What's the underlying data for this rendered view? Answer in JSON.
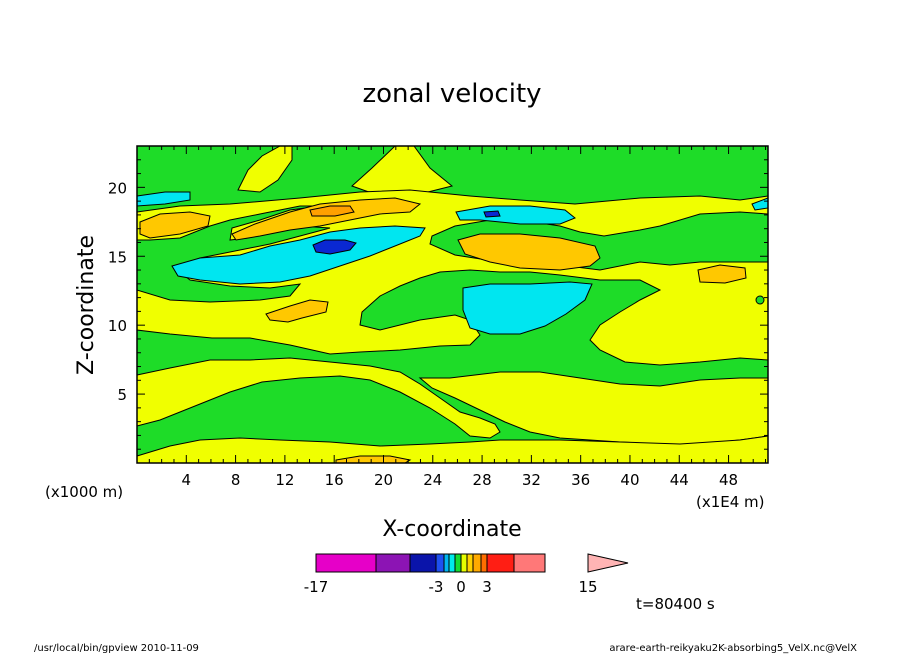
{
  "chart_data": {
    "type": "heatmap",
    "title": "zonal velocity",
    "xlabel": "X-coordinate",
    "ylabel": "Z-coordinate",
    "x_unit": "(x1E4 m)",
    "y_unit": "(x1000 m)",
    "xlim": [
      0,
      51.2
    ],
    "ylim": [
      0,
      23
    ],
    "x_ticks": [
      "4",
      "8",
      "12",
      "16",
      "20",
      "24",
      "28",
      "32",
      "36",
      "40",
      "44",
      "48"
    ],
    "y_ticks": [
      "5",
      "10",
      "15",
      "20"
    ],
    "time_label": "t=80400 s",
    "colorbar": {
      "tick_labels": [
        "-17",
        "-3",
        "0",
        "3",
        "15"
      ],
      "colors": [
        "#e600c8",
        "#8c14b4",
        "#0a14aa",
        "#1e50f0",
        "#00b4f0",
        "#00ebeb",
        "#14dc32",
        "#e6ff00",
        "#ffd200",
        "#ffaa00",
        "#ff6e00",
        "#ff1e14",
        "#ff7878",
        "#ffb4b4"
      ]
    },
    "regions": [
      {
        "level": "green",
        "color": "#1edc28",
        "desc": "background"
      },
      {
        "level": "yellow",
        "color": "#f0ff00"
      },
      {
        "level": "orange",
        "color": "#ffc800"
      },
      {
        "level": "cyan",
        "color": "#00e6f0"
      },
      {
        "level": "blue",
        "color": "#0a28d2"
      }
    ]
  },
  "footer": {
    "left": "/usr/local/bin/gpview  2010-11-09",
    "right": "arare-earth-reikyaku2K-absorbing5_VelX.nc@VelX"
  }
}
